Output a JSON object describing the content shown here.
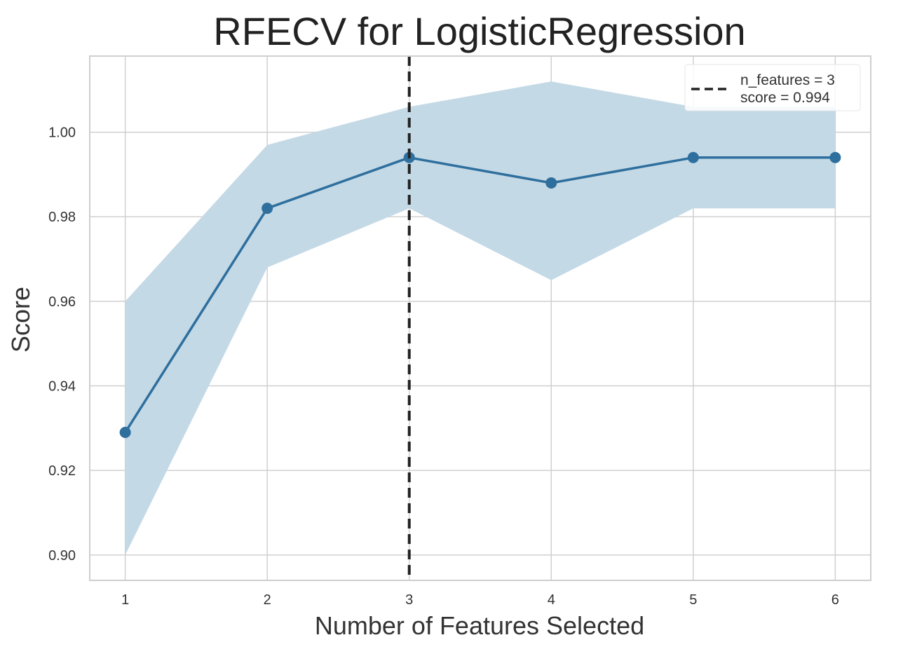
{
  "chart_data": {
    "type": "line",
    "title": "RFECV for LogisticRegression",
    "xlabel": "Number of Features Selected",
    "ylabel": "Score",
    "x": [
      1,
      2,
      3,
      4,
      5,
      6
    ],
    "series": [
      {
        "values": [
          0.929,
          0.982,
          0.994,
          0.988,
          0.994,
          0.994
        ],
        "upper": [
          0.96,
          0.997,
          1.006,
          1.012,
          1.006,
          1.006
        ],
        "lower": [
          0.9,
          0.968,
          0.982,
          0.965,
          0.982,
          0.982
        ]
      }
    ],
    "xticks": [
      "1",
      "2",
      "3",
      "4",
      "5",
      "6"
    ],
    "yticks": [
      0.9,
      0.92,
      0.94,
      0.96,
      0.98,
      1.0
    ],
    "ytick_labels": [
      "0.90",
      "0.92",
      "0.94",
      "0.96",
      "0.98",
      "1.00"
    ],
    "xlim": [
      0.75,
      6.25
    ],
    "ylim": [
      0.894,
      1.018
    ],
    "grid": true,
    "vline": {
      "x": 3,
      "style": "dashed"
    },
    "legend": {
      "position": "top-right",
      "line1": "n_features = 3",
      "line2": "score = 0.994"
    },
    "colors": {
      "line": "#2e6f9e",
      "fill": "#c4d9e6",
      "vline": "#222222",
      "grid": "#d0d0d0",
      "frame": "#cfcfcf",
      "tick_text": "#333333",
      "title_text": "#222222"
    }
  }
}
